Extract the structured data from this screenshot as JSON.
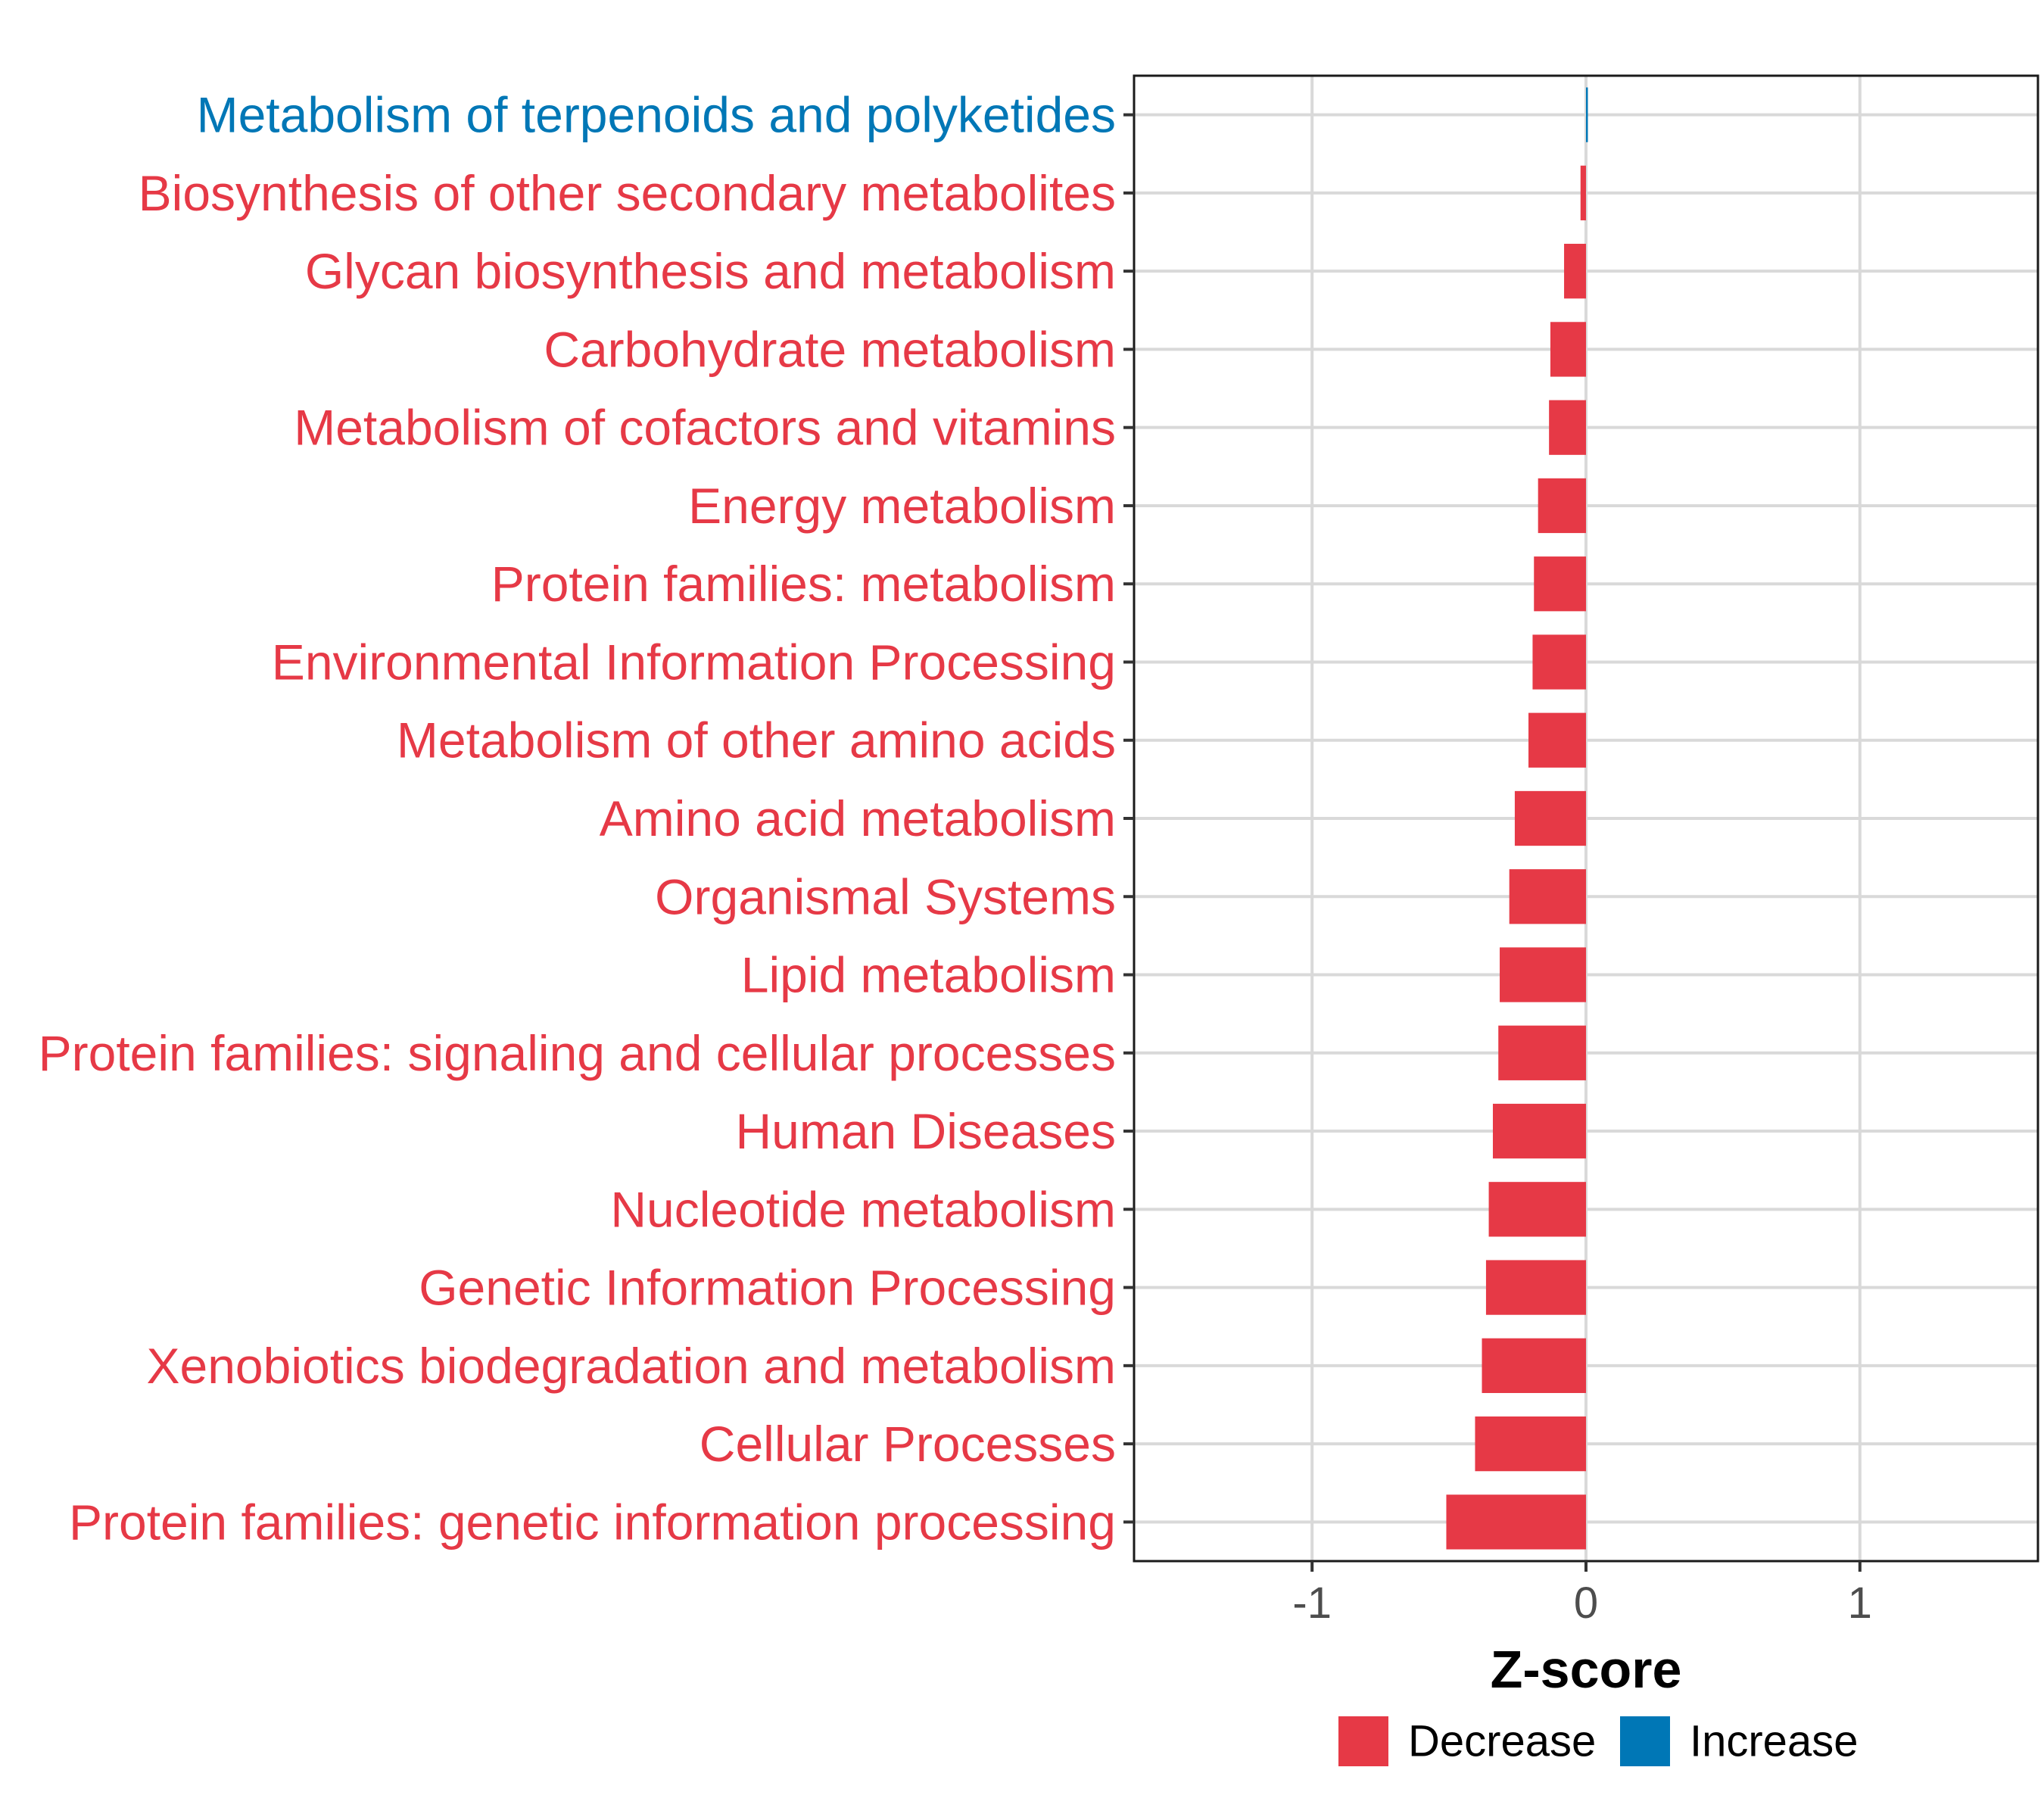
{
  "chart_data": {
    "type": "bar",
    "orientation": "horizontal",
    "xlabel": "Z-score",
    "ylabel": "",
    "xlim": [
      -1.65,
      1.65
    ],
    "xticks": [
      -1,
      0,
      1
    ],
    "xtick_labels": [
      "-1",
      "0",
      "1"
    ],
    "grid": true,
    "legend": {
      "position": "bottom",
      "entries": [
        {
          "label": "Decrease",
          "color": "#e63946"
        },
        {
          "label": "Increase",
          "color": "#0077b6"
        }
      ]
    },
    "categories": [
      "Metabolism of terpenoids and polyketides",
      "Biosynthesis of other secondary metabolites",
      "Glycan biosynthesis and metabolism",
      "Carbohydrate metabolism",
      "Metabolism of cofactors and vitamins",
      "Energy metabolism",
      "Protein families: metabolism",
      "Environmental Information Processing",
      "Metabolism of other amino acids",
      "Amino acid metabolism",
      "Organismal Systems",
      "Lipid metabolism",
      "Protein families: signaling and cellular processes",
      "Human Diseases",
      "Nucleotide metabolism",
      "Genetic Information Processing",
      "Xenobiotics biodegradation and metabolism",
      "Cellular Processes",
      "Protein families: genetic information processing"
    ],
    "values": [
      0.005,
      -0.02,
      -0.08,
      -0.13,
      -0.135,
      -0.175,
      -0.19,
      -0.195,
      -0.21,
      -0.26,
      -0.28,
      -0.315,
      -0.32,
      -0.34,
      -0.355,
      -0.365,
      -0.38,
      -0.405,
      -0.51
    ],
    "groups": [
      "Increase",
      "Decrease",
      "Decrease",
      "Decrease",
      "Decrease",
      "Decrease",
      "Decrease",
      "Decrease",
      "Decrease",
      "Decrease",
      "Decrease",
      "Decrease",
      "Decrease",
      "Decrease",
      "Decrease",
      "Decrease",
      "Decrease",
      "Decrease",
      "Decrease"
    ]
  }
}
